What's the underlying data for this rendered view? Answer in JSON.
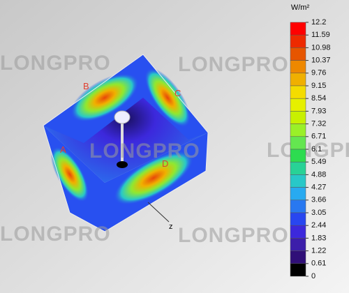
{
  "watermark": "LONGPRO",
  "face_labels": [
    "A",
    "B",
    "C",
    "D"
  ],
  "axis_label": "z",
  "legend": {
    "unit": "W/m²",
    "ticks": [
      "12.2",
      "11.59",
      "10.98",
      "10.37",
      "9.76",
      "9.15",
      "8.54",
      "7.93",
      "7.32",
      "6.71",
      "6.1",
      "5.49",
      "4.88",
      "4.27",
      "3.66",
      "3.05",
      "2.44",
      "1.83",
      "1.22",
      "0.61",
      "0"
    ],
    "colors": [
      "#ff0000",
      "#ee2a00",
      "#e65500",
      "#ee8800",
      "#f0b000",
      "#f4dc00",
      "#e6f000",
      "#c8f000",
      "#9af028",
      "#64e650",
      "#2ddc50",
      "#28d296",
      "#28c8c8",
      "#28aaf0",
      "#2878f0",
      "#2846f0",
      "#3c28dc",
      "#3c1eaa",
      "#300f78",
      "#000000"
    ]
  }
}
